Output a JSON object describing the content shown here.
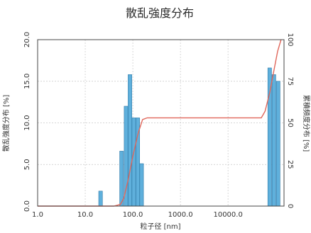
{
  "chart_data": {
    "type": "bar",
    "title": "散乱強度分布",
    "xlabel": "粒子径 [nm]",
    "ylabel": "散乱強度分布 [%]",
    "y2label": "累積頻度分布 [%]",
    "xscale": "log",
    "xlim": [
      1,
      150000
    ],
    "ylim": [
      0,
      20
    ],
    "y2lim": [
      0,
      100
    ],
    "grid": true,
    "xticks": [
      {
        "value": 1,
        "label": "1.0"
      },
      {
        "value": 10,
        "label": "10.0"
      },
      {
        "value": 100,
        "label": "100.0"
      },
      {
        "value": 1000,
        "label": "1000.0"
      },
      {
        "value": 10000,
        "label": "10000.0"
      }
    ],
    "yticks": [
      {
        "value": 0,
        "label": "0.0"
      },
      {
        "value": 5,
        "label": "5.0"
      },
      {
        "value": 10,
        "label": "10.0"
      },
      {
        "value": 15,
        "label": "15.0"
      },
      {
        "value": 20,
        "label": "20.0"
      }
    ],
    "y2ticks": [
      {
        "value": 0,
        "label": "0"
      },
      {
        "value": 25,
        "label": "25"
      },
      {
        "value": 50,
        "label": "50"
      },
      {
        "value": 75,
        "label": "75"
      },
      {
        "value": 100,
        "label": "100"
      }
    ],
    "bar_series": {
      "name": "散乱強度分布",
      "color": "#5fb0dc",
      "x": [
        21,
        58,
        72,
        87,
        105,
        127,
        153,
        75000,
        92000,
        113000
      ],
      "values": [
        1.8,
        6.6,
        12.0,
        15.8,
        10.6,
        10.6,
        5.1,
        16.6,
        15.8,
        15.0
      ]
    },
    "line_series": {
      "name": "累積頻度分布",
      "color": "#e0675b",
      "x": [
        1,
        40,
        55,
        65,
        80,
        100,
        130,
        160,
        200,
        1000,
        10000,
        50000,
        60000,
        75000,
        90000,
        110000,
        130000
      ],
      "values": [
        0,
        0,
        1,
        5,
        16,
        30,
        44,
        52,
        53,
        53,
        53,
        53,
        57,
        68,
        80,
        93,
        100
      ]
    }
  }
}
